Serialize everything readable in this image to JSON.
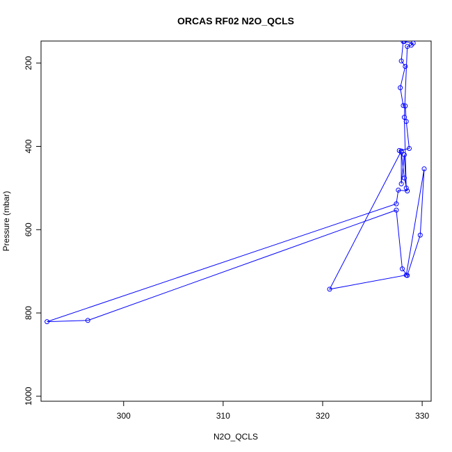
{
  "chart_data": {
    "type": "scatter",
    "title": "ORCAS RF02 N2O_QCLS",
    "xlabel": "N2O_QCLS",
    "ylabel": "Pressure (mbar)",
    "xlim": [
      291.7,
      330.9
    ],
    "ylim": [
      1012,
      147
    ],
    "y_reversed": true,
    "x_ticks": [
      300,
      310,
      320,
      330
    ],
    "y_ticks": [
      200,
      400,
      600,
      800,
      1000
    ],
    "grid": false,
    "legend": "none",
    "series": [
      {
        "color": "#0000ff",
        "marker": "open-circle",
        "line": true,
        "points": [
          [
            328.1,
            148
          ],
          [
            327.9,
            195
          ],
          [
            328.3,
            208
          ],
          [
            327.8,
            259
          ],
          [
            328.1,
            302
          ],
          [
            328.3,
            303
          ],
          [
            328.4,
            340
          ],
          [
            328.7,
            405
          ],
          [
            327.7,
            410
          ],
          [
            327.9,
            414
          ],
          [
            328.2,
            476
          ],
          [
            328.5,
            507
          ],
          [
            327.6,
            505
          ],
          [
            327.4,
            538
          ],
          [
            292.3,
            821
          ],
          [
            296.4,
            818
          ],
          [
            327.4,
            553
          ],
          [
            328.0,
            694
          ],
          [
            328.5,
            710
          ],
          [
            329.8,
            613
          ],
          [
            330.2,
            454
          ],
          [
            328.4,
            709
          ],
          [
            320.7,
            743
          ],
          [
            327.9,
            411
          ],
          [
            327.9,
            490
          ],
          [
            328.2,
            420
          ],
          [
            328.4,
            500
          ],
          [
            328.2,
            330
          ],
          [
            328.5,
            160
          ],
          [
            328.9,
            157
          ],
          [
            329.1,
            152
          ],
          [
            328.2,
            148
          ]
        ]
      }
    ]
  }
}
